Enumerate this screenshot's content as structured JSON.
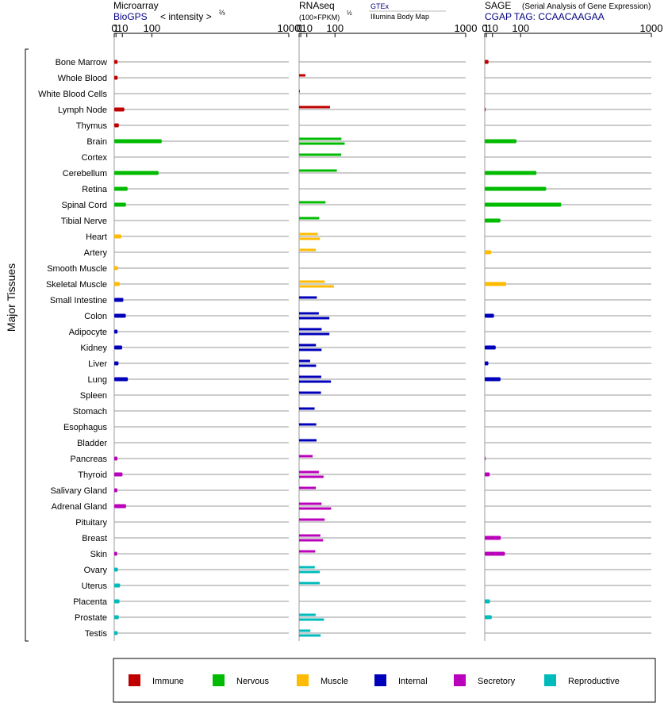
{
  "headers": {
    "microarray": {
      "title": "Microarray",
      "source": "BioGPS",
      "scale_prefix": "< intensity >",
      "scale_exp": "⅔"
    },
    "rnaseq": {
      "title": "RNAseq",
      "unit": "(100×FPKM)",
      "unit_exp": "½",
      "sources": [
        "GTEx",
        "Illumina Body Map"
      ]
    },
    "sage": {
      "title": "SAGE",
      "subtitle": "(Serial Analysis of Gene Expression)",
      "tag": "CGAP TAG: CCAACAAGAA"
    }
  },
  "axis_ticks": [
    "0",
    "1",
    "10",
    "100",
    "1000"
  ],
  "y_axis_label": "Major Tissues",
  "legend": [
    {
      "label": "Immune",
      "color": "#c00000"
    },
    {
      "label": "Nervous",
      "color": "#00bb00"
    },
    {
      "label": "Muscle",
      "color": "#ffbb00"
    },
    {
      "label": "Internal",
      "color": "#0000bb"
    },
    {
      "label": "Secretory",
      "color": "#bb00bb"
    },
    {
      "label": "Reproductive",
      "color": "#00bbbb"
    }
  ],
  "chart_data": {
    "type": "bar",
    "scale": "power",
    "x_range": [
      0,
      1000
    ],
    "categories": [
      "Bone Marrow",
      "Whole Blood",
      "White Blood Cells",
      "Lymph Node",
      "Thymus",
      "Brain",
      "Cortex",
      "Cerebellum",
      "Retina",
      "Spinal Cord",
      "Tibial Nerve",
      "Heart",
      "Artery",
      "Smooth Muscle",
      "Skeletal Muscle",
      "Small Intestine",
      "Colon",
      "Adipocyte",
      "Kidney",
      "Liver",
      "Lung",
      "Spleen",
      "Stomach",
      "Esophagus",
      "Bladder",
      "Pancreas",
      "Thyroid",
      "Salivary Gland",
      "Adrenal Gland",
      "Pituitary",
      "Breast",
      "Skin",
      "Ovary",
      "Uterus",
      "Placenta",
      "Prostate",
      "Testis"
    ],
    "category_groups": [
      "Immune",
      "Immune",
      "Immune",
      "Immune",
      "Immune",
      "Nervous",
      "Nervous",
      "Nervous",
      "Nervous",
      "Nervous",
      "Nervous",
      "Muscle",
      "Muscle",
      "Muscle",
      "Muscle",
      "Internal",
      "Internal",
      "Internal",
      "Internal",
      "Internal",
      "Internal",
      "Internal",
      "Internal",
      "Internal",
      "Internal",
      "Secretory",
      "Secretory",
      "Secretory",
      "Secretory",
      "Secretory",
      "Secretory",
      "Secretory",
      "Reproductive",
      "Reproductive",
      "Reproductive",
      "Reproductive",
      "Reproductive"
    ],
    "series": [
      {
        "name": "Microarray",
        "values": [
          2.6,
          2.7,
          null,
          13.9,
          4.3,
          142,
          null,
          128,
          21.2,
          17.4,
          null,
          8.2,
          null,
          3.1,
          5.5,
          11.9,
          17.1,
          2.6,
          9.7,
          3.8,
          21.8,
          null,
          null,
          null,
          null,
          2.5,
          10.3,
          2.4,
          17.6,
          null,
          null,
          2.2,
          3.0,
          6.2,
          5.2,
          4.2,
          2.7
        ]
      },
      {
        "name": "GTEx",
        "values": [
          null,
          7.4,
          0.02,
          79.9,
          null,
          128,
          127,
          108,
          null,
          63,
          42,
          37.9,
          31.6,
          null,
          60,
          34.9,
          40.8,
          49.7,
          32.2,
          17.1,
          48.5,
          47.7,
          28.4,
          33.1,
          33.9,
          23.2,
          40.8,
          31.8,
          49.6,
          60.1,
          45.6,
          30.2,
          28.9,
          43.4,
          null,
          31.4,
          17.6
        ]
      },
      {
        "name": "Illumina Body Map",
        "values": [
          null,
          null,
          null,
          null,
          null,
          143,
          null,
          null,
          null,
          null,
          null,
          44.2,
          null,
          null,
          95.5,
          null,
          77.4,
          77.6,
          49.6,
          32.6,
          83.6,
          null,
          null,
          null,
          null,
          null,
          56.3,
          null,
          84.3,
          null,
          54.6,
          null,
          43.8,
          null,
          null,
          57.7,
          46.5
        ]
      },
      {
        "name": "SAGE",
        "values": [
          3.4,
          null,
          null,
          0.03,
          null,
          83,
          null,
          173,
          224,
          311,
          28.9,
          null,
          7.7,
          null,
          46.2,
          null,
          13.1,
          null,
          16.9,
          3.2,
          29.2,
          null,
          null,
          null,
          null,
          0.03,
          5.2,
          null,
          null,
          null,
          29.9,
          42.3,
          null,
          null,
          5.6,
          8.6,
          null
        ]
      }
    ]
  }
}
